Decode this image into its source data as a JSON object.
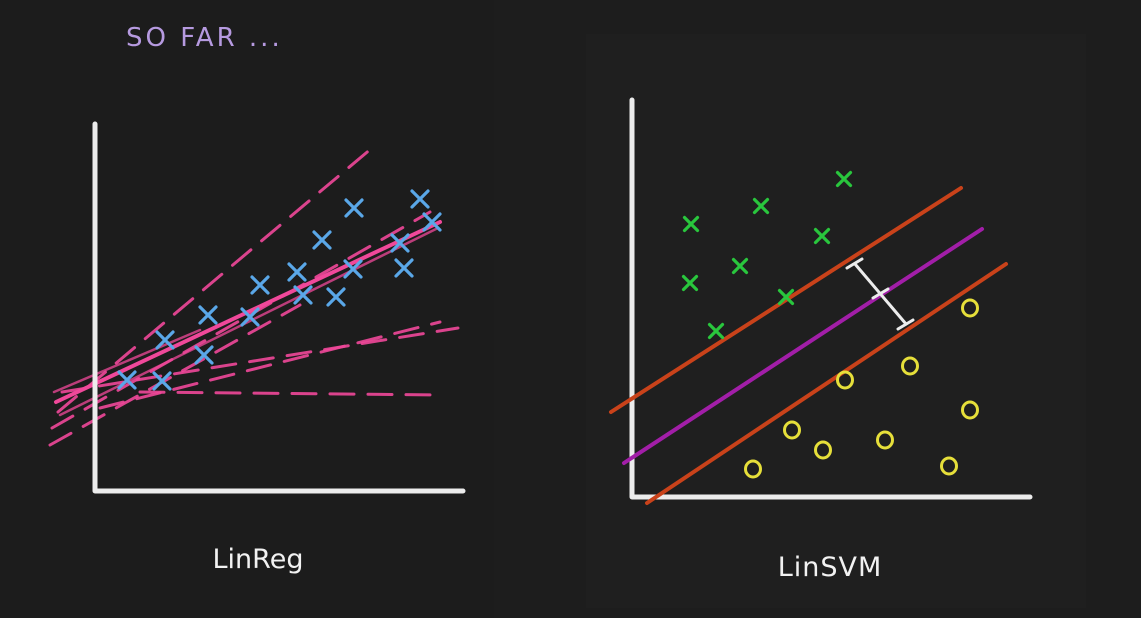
{
  "heading": {
    "text": "SO FAR ...",
    "color": "#b69ae0"
  },
  "linreg": {
    "label": "LinReg",
    "axis_color": "#ececec",
    "point_color": "#5aa7e8",
    "line_color": "#f0489a",
    "points_marker": "x"
  },
  "linsvm": {
    "label": "LinSVM",
    "axis_color": "#ececec",
    "class_a": {
      "marker": "x",
      "color": "#29c63d"
    },
    "class_b": {
      "marker": "o",
      "color": "#e6df3a"
    },
    "margin_line_color": "#c9421a",
    "hyperplane_color": "#a21ea8",
    "margin_indicator_color": "#ececec"
  }
}
